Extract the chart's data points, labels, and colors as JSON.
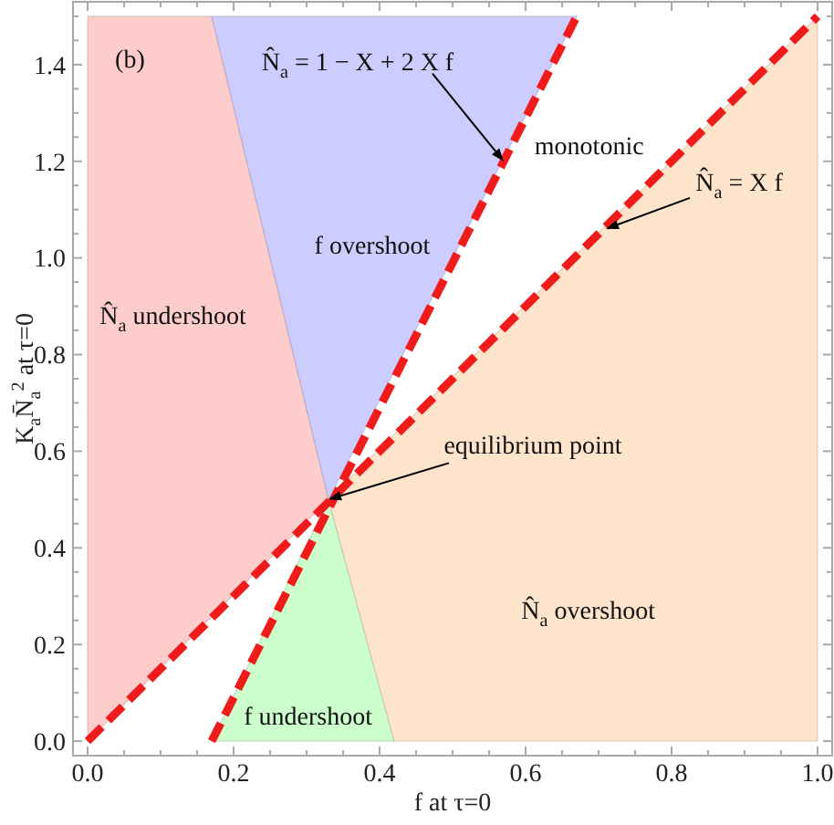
{
  "chart_data": {
    "type": "area",
    "xlabel": "f at τ=0",
    "ylabel": "K$_{a}$N̄$_{a}$$^{2}$ at τ=0",
    "xlim": [
      -0.02,
      1.02
    ],
    "ylim": [
      -0.03,
      1.53
    ],
    "xticks": [
      {
        "value": 0,
        "label": "0.0"
      },
      {
        "value": 0.05,
        "label": null
      },
      {
        "value": 0.1,
        "label": null
      },
      {
        "value": 0.15,
        "label": null
      },
      0.2,
      {
        "value": 0.25,
        "label": null
      },
      {
        "value": 0.3,
        "label": null
      },
      {
        "value": 0.35,
        "label": null
      },
      0.4,
      {
        "value": 0.45,
        "label": null
      },
      {
        "value": 0.5,
        "label": null
      },
      {
        "value": 0.55,
        "label": null
      },
      0.6,
      {
        "value": 0.65,
        "label": null
      },
      {
        "value": 0.7,
        "label": null
      },
      {
        "value": 0.75,
        "label": null
      },
      0.8,
      {
        "value": 0.85,
        "label": null
      },
      {
        "value": 0.9,
        "label": null
      },
      {
        "value": 0.95,
        "label": null
      },
      {
        "value": 1,
        "label": "1.0"
      }
    ],
    "yticks": [
      {
        "value": 0,
        "label": "0.0"
      },
      {
        "value": 0.05,
        "label": null
      },
      {
        "value": 0.1,
        "label": null
      },
      {
        "value": 0.15,
        "label": null
      },
      0.2,
      {
        "value": 0.25,
        "label": null
      },
      {
        "value": 0.3,
        "label": null
      },
      {
        "value": 0.35,
        "label": null
      },
      0.4,
      {
        "value": 0.45,
        "label": null
      },
      {
        "value": 0.5,
        "label": null
      },
      {
        "value": 0.55,
        "label": null
      },
      0.6,
      {
        "value": 0.65,
        "label": null
      },
      {
        "value": 0.7,
        "label": null
      },
      {
        "value": 0.75,
        "label": null
      },
      0.8,
      {
        "value": 0.85,
        "label": null
      },
      {
        "value": 0.9,
        "label": null
      },
      {
        "value": 0.95,
        "label": null
      },
      {
        "value": 1,
        "label": "1.0"
      },
      {
        "value": 1.05,
        "label": null
      },
      {
        "value": 1.1,
        "label": null
      },
      {
        "value": 1.15,
        "label": null
      },
      1.2,
      {
        "value": 1.25,
        "label": null
      },
      {
        "value": 1.3,
        "label": null
      },
      {
        "value": 1.35,
        "label": null
      },
      1.4,
      {
        "value": 1.45,
        "label": null
      },
      {
        "value": 1.5,
        "label": null
      }
    ],
    "line_style": "dashed",
    "series": [
      {
        "name": "N̂$_{a}$ undershoot",
        "color": "#ffcccc",
        "x": [
          0,
          0,
          0.17,
          0.33,
          0
        ],
        "values": [
          0,
          1.5,
          1.5,
          0.5,
          0
        ]
      },
      {
        "name": "f overshoot",
        "color": "#ccccff",
        "x": [
          0.17,
          0.67,
          0.33,
          0.17
        ],
        "values": [
          1.5,
          1.5,
          0.5,
          1.5
        ]
      },
      {
        "name": "f undershoot",
        "color": "#ccffcc",
        "x": [
          0.17,
          0.33,
          0.42,
          0.17
        ],
        "values": [
          0,
          0.5,
          0,
          0
        ]
      },
      {
        "name": "N̂$_{a}$ overshoot",
        "color": "#ffe4cc",
        "x": [
          0.33,
          1,
          1,
          0.42,
          0.33
        ],
        "values": [
          0.5,
          1.5,
          0,
          0,
          0.5
        ]
      },
      {
        "type": "line",
        "color": "#f01c1c",
        "x": [
          0.17,
          0.67
        ],
        "values": [
          0,
          1.5
        ]
      },
      {
        "type": "line",
        "color": "#f01c1c",
        "x": [
          0,
          1
        ],
        "values": [
          0,
          1.5
        ]
      }
    ],
    "annotations": [
      "(b)",
      {
        "text": "N̂$_{a}$ = 1 − X + 2 X f",
        "x": 0.57,
        "y": 1.2
      },
      "monotonic",
      {
        "text": "N̂$_{a}$ = X f",
        "x": 0.71,
        "y": 1.06
      },
      {
        "text": "equilibrium point",
        "x": 0.33,
        "y": 0.5
      }
    ]
  }
}
